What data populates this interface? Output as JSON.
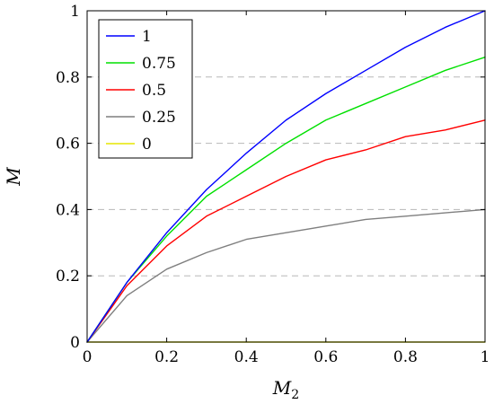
{
  "chart_data": {
    "type": "line",
    "title": "",
    "xlabel": "M",
    "xlabel_subscript": "2",
    "ylabel": "M",
    "xlim": [
      0,
      1
    ],
    "ylim": [
      0,
      1
    ],
    "x_ticks": [
      "0",
      "0.2",
      "0.4",
      "0.6",
      "0.8",
      "1"
    ],
    "y_ticks": [
      "0",
      "0.2",
      "0.4",
      "0.6",
      "0.8",
      "1"
    ],
    "grid": "horizontal dashed",
    "legend_position": "top-left",
    "x": [
      0,
      0.1,
      0.2,
      0.3,
      0.4,
      0.5,
      0.6,
      0.7,
      0.8,
      0.9,
      1.0
    ],
    "series": [
      {
        "name": "1",
        "color": "#0000ff",
        "values": [
          0,
          0.18,
          0.33,
          0.46,
          0.57,
          0.67,
          0.75,
          0.82,
          0.89,
          0.95,
          1.0
        ]
      },
      {
        "name": "0.75",
        "color": "#00e000",
        "values": [
          0,
          0.18,
          0.32,
          0.44,
          0.52,
          0.6,
          0.67,
          0.72,
          0.77,
          0.82,
          0.86
        ]
      },
      {
        "name": "0.5",
        "color": "#ff0000",
        "values": [
          0,
          0.17,
          0.29,
          0.38,
          0.44,
          0.5,
          0.55,
          0.58,
          0.62,
          0.64,
          0.67
        ]
      },
      {
        "name": "0.25",
        "color": "#7f7f7f",
        "values": [
          0,
          0.14,
          0.22,
          0.27,
          0.31,
          0.33,
          0.35,
          0.37,
          0.38,
          0.39,
          0.4
        ]
      },
      {
        "name": "0",
        "color": "#e6e600",
        "values": [
          0,
          0,
          0,
          0,
          0,
          0,
          0,
          0,
          0,
          0,
          0
        ]
      }
    ]
  }
}
